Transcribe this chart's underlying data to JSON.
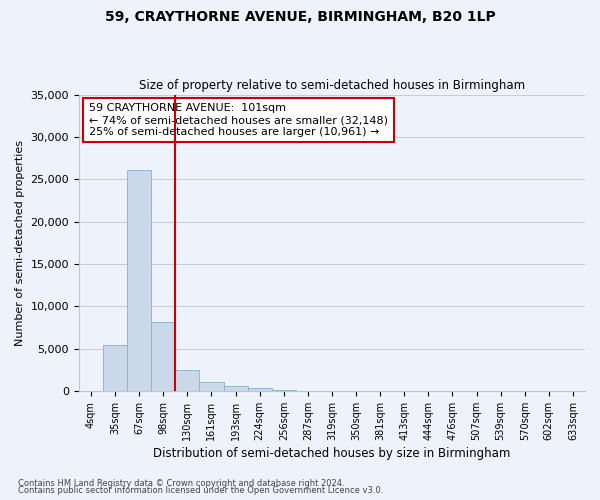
{
  "title": "59, CRAYTHORNE AVENUE, BIRMINGHAM, B20 1LP",
  "subtitle": "Size of property relative to semi-detached houses in Birmingham",
  "xlabel": "Distribution of semi-detached houses by size in Birmingham",
  "ylabel": "Number of semi-detached properties",
  "footnote1": "Contains HM Land Registry data © Crown copyright and database right 2024.",
  "footnote2": "Contains public sector information licensed under the Open Government Licence v3.0.",
  "bar_labels": [
    "4sqm",
    "35sqm",
    "67sqm",
    "98sqm",
    "130sqm",
    "161sqm",
    "193sqm",
    "224sqm",
    "256sqm",
    "287sqm",
    "319sqm",
    "350sqm",
    "381sqm",
    "413sqm",
    "444sqm",
    "476sqm",
    "507sqm",
    "539sqm",
    "570sqm",
    "602sqm",
    "633sqm"
  ],
  "bar_values": [
    0,
    5400,
    26100,
    8100,
    2500,
    1100,
    600,
    300,
    150,
    50,
    0,
    0,
    0,
    0,
    0,
    0,
    0,
    0,
    0,
    0,
    0
  ],
  "bar_color": "#c9d9ea",
  "bar_edge_color": "#8aafc8",
  "vline_x": 3.5,
  "vline_color": "#cc0000",
  "ylim": [
    0,
    35000
  ],
  "yticks": [
    0,
    5000,
    10000,
    15000,
    20000,
    25000,
    30000,
    35000
  ],
  "annotation_text": "59 CRAYTHORNE AVENUE:  101sqm\n← 74% of semi-detached houses are smaller (32,148)\n25% of semi-detached houses are larger (10,961) →",
  "annotation_box_color": "#ffffff",
  "annotation_box_edge": "#cc0000",
  "background_color": "#eef2fa"
}
